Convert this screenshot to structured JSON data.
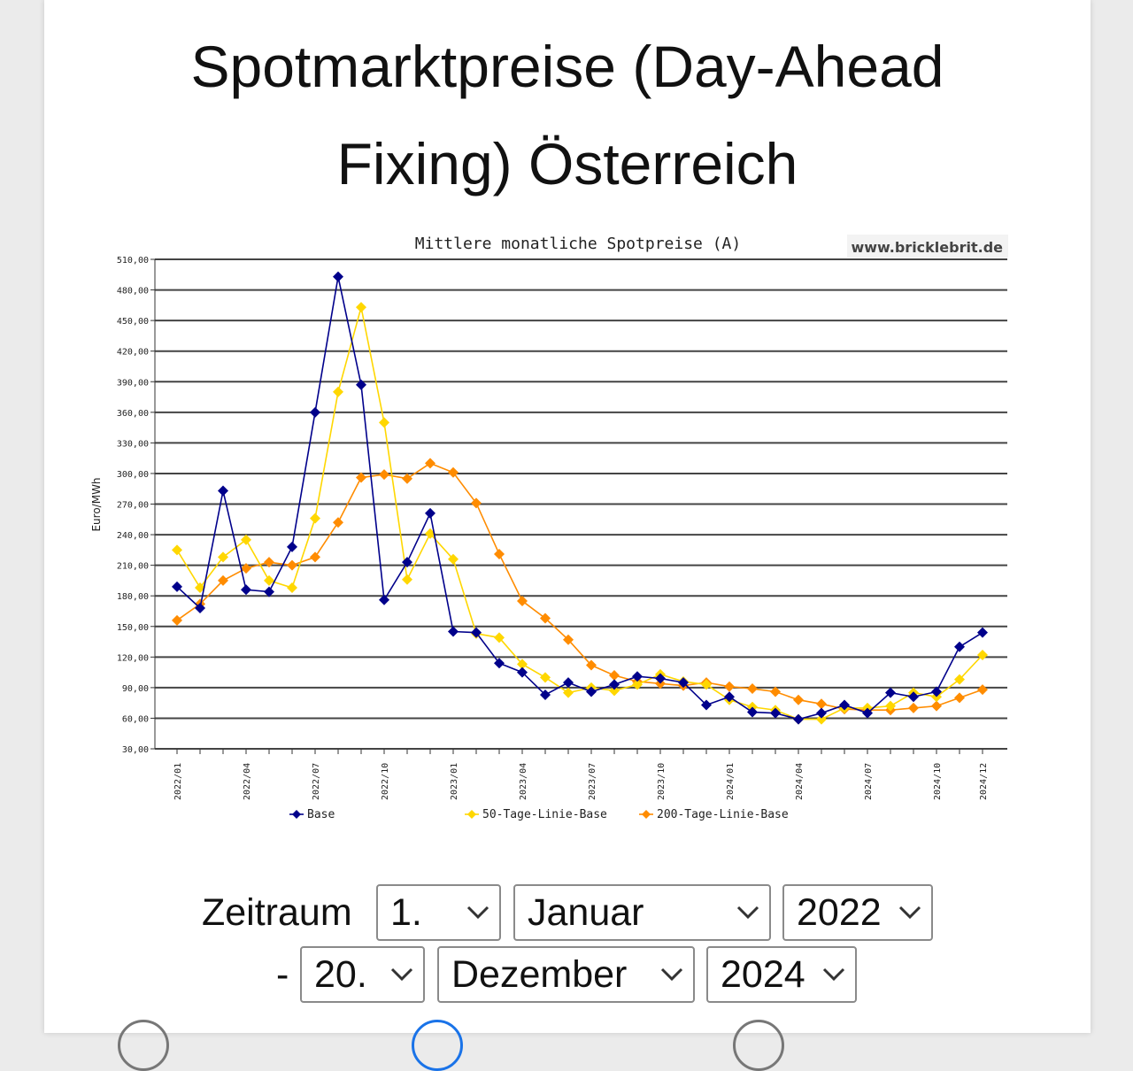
{
  "page": {
    "title_line1": "Spotmarktpreise (Day-Ahead",
    "title_line2": "Fixing) Österreich"
  },
  "chart_data": {
    "type": "line",
    "title": "Mittlere monatliche Spotpreise (A)",
    "watermark": "www.bricklebrit.de",
    "ylabel": "Euro/MWh",
    "xlabel": "",
    "ylim": [
      30,
      510
    ],
    "yticks": [
      "510,00",
      "480,00",
      "450,00",
      "420,00",
      "390,00",
      "360,00",
      "330,00",
      "300,00",
      "270,00",
      "240,00",
      "210,00",
      "180,00",
      "150,00",
      "120,00",
      "90,00",
      "60,00",
      "30,00"
    ],
    "categories": [
      "2022/01",
      "2022/02",
      "2022/03",
      "2022/04",
      "2022/05",
      "2022/06",
      "2022/07",
      "2022/08",
      "2022/09",
      "2022/10",
      "2022/11",
      "2022/12",
      "2023/01",
      "2023/02",
      "2023/03",
      "2023/04",
      "2023/05",
      "2023/06",
      "2023/07",
      "2023/08",
      "2023/09",
      "2023/10",
      "2023/11",
      "2023/12",
      "2024/01",
      "2024/02",
      "2024/03",
      "2024/04",
      "2024/05",
      "2024/06",
      "2024/07",
      "2024/08",
      "2024/09",
      "2024/10",
      "2024/11",
      "2024/12"
    ],
    "x_tick_labels": [
      "2022/01",
      "2022/04",
      "2022/07",
      "2022/10",
      "2023/01",
      "2023/04",
      "2023/07",
      "2023/10",
      "2024/01",
      "2024/04",
      "2024/07",
      "2024/10",
      "2024/12"
    ],
    "grid": true,
    "legend_position": "bottom",
    "series": [
      {
        "name": "Base",
        "color": "#00008b",
        "values": [
          189,
          168,
          283,
          186,
          184,
          228,
          360,
          493,
          387,
          176,
          213,
          261,
          145,
          144,
          114,
          105,
          83,
          95,
          86,
          93,
          101,
          99,
          95,
          73,
          81,
          66,
          65,
          59,
          65,
          73,
          65,
          85,
          81,
          86,
          130,
          144
        ]
      },
      {
        "name": "50-Tage-Linie-Base",
        "color": "#ffd700",
        "values": [
          225,
          188,
          218,
          235,
          195,
          188,
          256,
          380,
          463,
          350,
          196,
          241,
          216,
          143,
          139,
          113,
          100,
          85,
          90,
          87,
          93,
          103,
          96,
          93,
          78,
          71,
          68,
          59,
          59,
          70,
          70,
          72,
          85,
          81,
          98,
          122
        ]
      },
      {
        "name": "200-Tage-Linie-Base",
        "color": "#ff8c00",
        "values": [
          156,
          172,
          195,
          207,
          213,
          210,
          218,
          252,
          296,
          299,
          295,
          310,
          301,
          271,
          221,
          175,
          158,
          137,
          112,
          102,
          96,
          94,
          92,
          95,
          91,
          89,
          86,
          78,
          74,
          69,
          68,
          68,
          70,
          72,
          80,
          88
        ]
      }
    ]
  },
  "controls": {
    "range_label": "Zeitraum",
    "dash": "-",
    "from_day": "1.",
    "from_month": "Januar",
    "from_year": "2022",
    "to_day": "20.",
    "to_month": "Dezember",
    "to_year": "2024"
  }
}
